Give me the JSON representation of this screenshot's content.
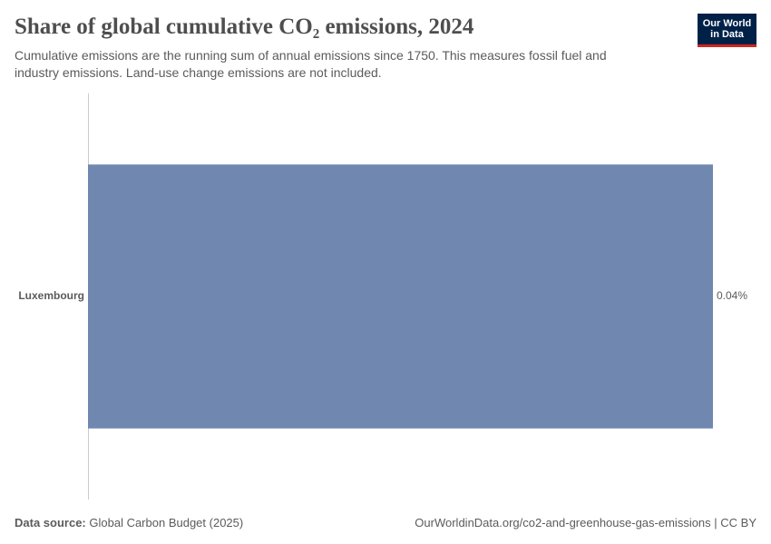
{
  "chart_data": {
    "type": "bar",
    "orientation": "horizontal",
    "title": "Share of global cumulative CO₂ emissions, 2024",
    "subtitle": "Cumulative emissions are the running sum of annual emissions since 1750. This measures fossil fuel and industry emissions. Land-use change emissions are not included.",
    "categories": [
      "Luxembourg"
    ],
    "values": [
      0.04
    ],
    "value_labels": [
      "0.04%"
    ],
    "color": "#7088b0"
  },
  "logo": {
    "line1": "Our World",
    "line2": "in Data"
  },
  "footer": {
    "source_label": "Data source:",
    "source": "Global Carbon Budget (2025)",
    "url": "OurWorldinData.org/co2-and-greenhouse-gas-emissions | CC BY"
  }
}
